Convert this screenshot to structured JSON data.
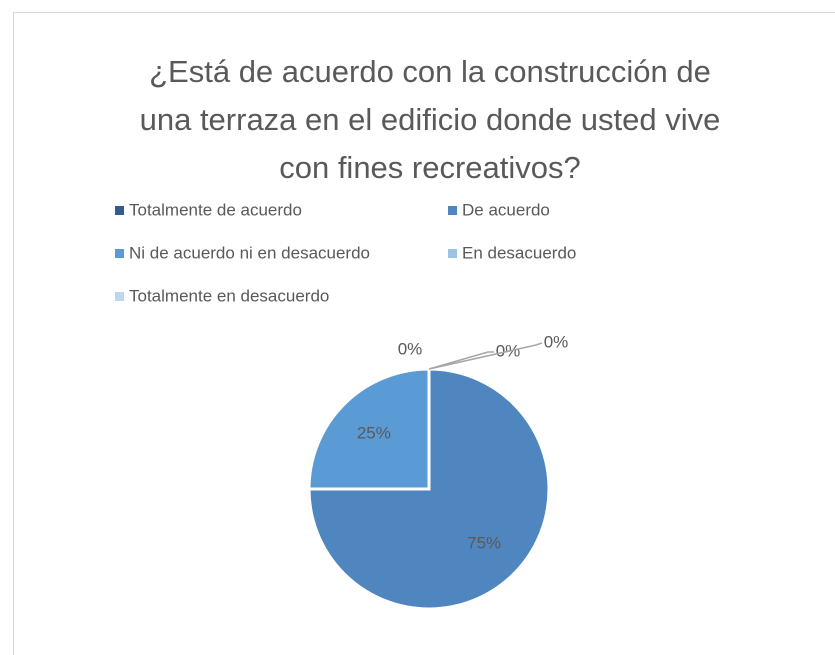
{
  "chart_data": {
    "type": "pie",
    "title": "¿Está de acuerdo con la construcción de\nuna terraza en el edificio donde usted vive\ncon fines recreativos?",
    "categories": [
      "Totalmente de acuerdo",
      "De acuerdo",
      "Ni de acuerdo ni en desacuerdo",
      "En desacuerdo",
      "Totalmente en desacuerdo"
    ],
    "values": [
      0,
      75,
      25,
      0,
      0
    ],
    "value_labels": [
      "0%",
      "75%",
      "25%",
      "0%",
      "0%"
    ],
    "colors": [
      "#335b8e",
      "#4f86c0",
      "#5b9bd5",
      "#9dc3e6",
      "#bdd7ee"
    ],
    "legend": "top"
  }
}
